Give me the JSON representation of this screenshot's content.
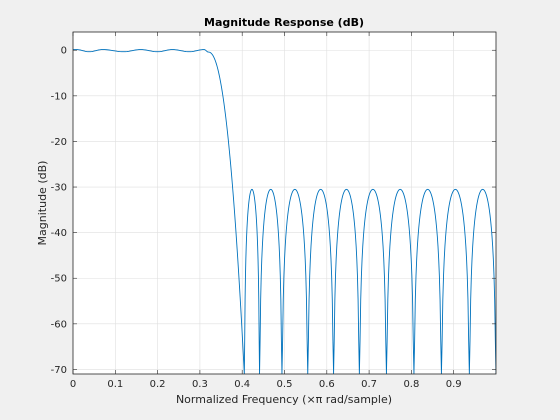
{
  "chart_data": {
    "type": "line",
    "title": "Magnitude Response (dB)",
    "xlabel": "Normalized Frequency (×π rad/sample)",
    "ylabel": "Magnitude (dB)",
    "xlim": [
      0,
      1
    ],
    "ylim": [
      -71,
      4
    ],
    "xticks": [
      0,
      0.1,
      0.2,
      0.3,
      0.4,
      0.5,
      0.6,
      0.7,
      0.8,
      0.9
    ],
    "xtick_labels": [
      "0",
      "0.1",
      "0.2",
      "0.3",
      "0.4",
      "0.5",
      "0.6",
      "0.7",
      "0.8",
      "0.9"
    ],
    "yticks": [
      0,
      -10,
      -20,
      -30,
      -40,
      -50,
      -60,
      -70
    ],
    "ytick_labels": [
      "0",
      "-10",
      "-20",
      "-30",
      "-40",
      "-50",
      "-60",
      "-70"
    ],
    "grid": true,
    "line_color": "#0072bd",
    "series": [
      {
        "passband_edge": 0.32,
        "passband_ripple_peaks": [
          0,
          0.008,
          0.07,
          0.16,
          0.235,
          0.31
        ],
        "passband_ripple_nulls": [
          0.038,
          0.12,
          0.2,
          0.275
        ],
        "passband_ripple_db": 0.5,
        "transition_end": 0.405,
        "stopband_nulls": [
          0.405,
          0.441,
          0.494,
          0.555,
          0.616,
          0.677,
          0.741,
          0.806,
          0.871,
          0.937,
          1.0
        ],
        "stopband_level_db": -30.5,
        "min_db": -71
      }
    ]
  }
}
